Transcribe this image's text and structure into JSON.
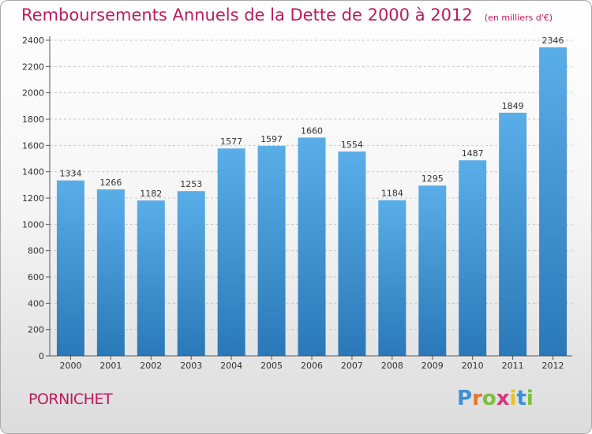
{
  "header": {
    "title": "Remboursements Annuels de la Dette de 2000 à 2012",
    "unit": "(en milliers d'€)"
  },
  "footer": {
    "town": "PORNICHET",
    "logo_letters": [
      "P",
      "r",
      "o",
      "x",
      "i",
      "t",
      "i"
    ],
    "logo_colors": [
      "#3a8fd8",
      "#e8732a",
      "#7bbf3a",
      "#d2387a",
      "#e8c22a",
      "#3a8fd8",
      "#7bbf3a"
    ]
  },
  "colors": {
    "bar_top": "#5aaee8",
    "bar_bottom": "#2a78b8",
    "title": "#c2185b"
  },
  "chart_data": {
    "type": "bar",
    "title": "Remboursements Annuels de la Dette de 2000 à 2012",
    "xlabel": "",
    "ylabel": "",
    "categories": [
      "2000",
      "2001",
      "2002",
      "2003",
      "2004",
      "2005",
      "2006",
      "2007",
      "2008",
      "2009",
      "2010",
      "2011",
      "2012"
    ],
    "values": [
      1334,
      1266,
      1182,
      1253,
      1577,
      1597,
      1660,
      1554,
      1184,
      1295,
      1487,
      1849,
      2346
    ],
    "ylim": [
      0,
      2400
    ],
    "yticks": [
      0,
      200,
      400,
      600,
      800,
      1000,
      1200,
      1400,
      1600,
      1800,
      2000,
      2200,
      2400
    ],
    "grid": true,
    "legend": "none"
  }
}
